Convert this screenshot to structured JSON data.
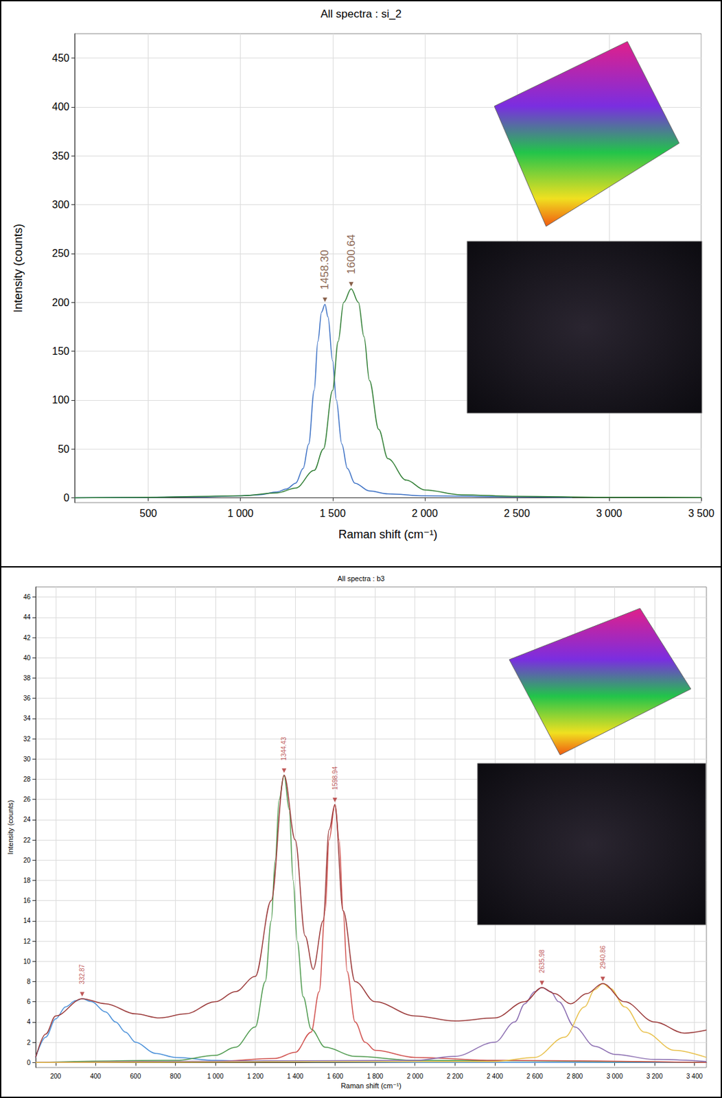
{
  "chart_data": [
    {
      "type": "line",
      "title": "All spectra : si_2",
      "x_label": "Raman shift (cm⁻¹)",
      "y_label": "Intensity (counts)",
      "xlim": [
        100,
        3500
      ],
      "xticks": [
        500,
        {
          "value": 1000,
          "label": "1 000"
        },
        {
          "value": 1500,
          "label": "1 500"
        },
        {
          "value": 2000,
          "label": "2 000"
        },
        {
          "value": 2500,
          "label": "2 500"
        },
        {
          "value": 3000,
          "label": "3 000"
        },
        {
          "value": 3500,
          "label": "3 500"
        }
      ],
      "ylim": [
        -5,
        475
      ],
      "yticks": [
        0,
        50,
        100,
        150,
        200,
        250,
        300,
        350,
        400,
        450
      ],
      "grid": true,
      "series": [
        {
          "color": "#3a6fc4",
          "x": [
            100,
            500,
            800,
            1000,
            1100,
            1200,
            1250,
            1300,
            1340,
            1370,
            1400,
            1420,
            1440,
            1458.3,
            1475,
            1500,
            1520,
            1550,
            1580,
            1620,
            1700,
            1800,
            2000,
            2500,
            2800
          ],
          "values": [
            0,
            0.5,
            1,
            2,
            3,
            6,
            9,
            15,
            30,
            55,
            110,
            160,
            190,
            198,
            185,
            140,
            100,
            55,
            30,
            15,
            7,
            4,
            2,
            1,
            0.5
          ]
        },
        {
          "color": "#2e7d32",
          "x": [
            100,
            500,
            1000,
            1200,
            1300,
            1400,
            1450,
            1500,
            1530,
            1560,
            1600.64,
            1640,
            1670,
            1700,
            1750,
            1800,
            1900,
            2000,
            2200,
            2500,
            3000,
            3500
          ],
          "values": [
            0,
            0.5,
            2,
            5,
            10,
            28,
            50,
            110,
            160,
            200,
            214,
            200,
            165,
            120,
            70,
            40,
            18,
            8,
            3,
            1.5,
            0.5,
            0.3
          ]
        }
      ],
      "annotations": [
        {
          "x": 1458.3,
          "y": 198,
          "text": "1458.30"
        },
        {
          "x": 1600.64,
          "y": 214,
          "text": "1600.64"
        }
      ]
    },
    {
      "type": "line",
      "title": "All spectra : b3",
      "x_label": "Raman shift (cm⁻¹)",
      "y_label": "Intensity (counts)",
      "xlim": [
        100,
        3460
      ],
      "xticks": [
        200,
        400,
        600,
        800,
        {
          "value": 1000,
          "label": "1 000"
        },
        {
          "value": 1200,
          "label": "1 200"
        },
        {
          "value": 1400,
          "label": "1 400"
        },
        {
          "value": 1600,
          "label": "1 600"
        },
        {
          "value": 1800,
          "label": "1 800"
        },
        {
          "value": 2000,
          "label": "2 000"
        },
        {
          "value": 2200,
          "label": "2 200"
        },
        {
          "value": 2400,
          "label": "2 400"
        },
        {
          "value": 2600,
          "label": "2 600"
        },
        {
          "value": 2800,
          "label": "2 800"
        },
        {
          "value": 3000,
          "label": "3 000"
        },
        {
          "value": 3200,
          "label": "3 200"
        },
        {
          "value": 3400,
          "label": "3 400"
        }
      ],
      "ylim": [
        -0.5,
        47
      ],
      "yticks": [
        0,
        2,
        4,
        6,
        8,
        10,
        12,
        14,
        16,
        18,
        20,
        22,
        24,
        26,
        28,
        30,
        32,
        34,
        36,
        38,
        40,
        42,
        44,
        46
      ],
      "grid": true,
      "series": [
        {
          "color": "#4a90d9",
          "x": [
            100,
            150,
            200,
            250,
            300,
            332.87,
            380,
            450,
            500,
            550,
            600,
            700,
            800,
            1000,
            1200,
            1500,
            2000,
            3460
          ],
          "values": [
            0.5,
            2.5,
            4.3,
            5.5,
            6.1,
            6.3,
            6.0,
            5.0,
            4.0,
            3.0,
            2.0,
            0.9,
            0.5,
            0.2,
            0.1,
            0.05,
            0,
            0
          ]
        },
        {
          "color": "#4e9a4e",
          "x": [
            100,
            800,
            1000,
            1100,
            1200,
            1250,
            1280,
            1300,
            1320,
            1344.43,
            1370,
            1390,
            1410,
            1440,
            1480,
            1550,
            1700,
            2000,
            3460
          ],
          "values": [
            0,
            0.2,
            0.7,
            1.5,
            3.5,
            8,
            14,
            20,
            26,
            28.4,
            25,
            18,
            12,
            6.5,
            3.3,
            1.5,
            0.6,
            0.2,
            0
          ]
        },
        {
          "color": "#d0504d",
          "x": [
            100,
            1000,
            1300,
            1400,
            1480,
            1520,
            1550,
            1570,
            1598.94,
            1620,
            1640,
            1660,
            1700,
            1750,
            1800,
            2000,
            2400,
            3460
          ],
          "values": [
            0,
            0.1,
            0.4,
            1,
            3,
            7,
            15,
            22,
            25.5,
            22,
            15,
            9,
            4,
            2,
            1.2,
            0.5,
            0.2,
            0
          ]
        },
        {
          "color": "#8a6cb0",
          "x": [
            100,
            2000,
            2200,
            2400,
            2500,
            2550,
            2600,
            2635.98,
            2680,
            2720,
            2800,
            2900,
            3000,
            3200,
            3460
          ],
          "values": [
            0,
            0.2,
            0.6,
            2,
            4,
            5.8,
            7,
            7.4,
            7,
            6,
            3.5,
            1.6,
            0.8,
            0.3,
            0.1
          ]
        },
        {
          "color": "#e8c04a",
          "x": [
            100,
            2400,
            2600,
            2750,
            2850,
            2900,
            2940.86,
            2980,
            3050,
            3150,
            3300,
            3460
          ],
          "values": [
            0,
            0.1,
            0.5,
            2.5,
            5.5,
            7.2,
            7.8,
            7.3,
            5.5,
            3,
            1.2,
            0.5
          ]
        },
        {
          "color": "#9b3a3a",
          "x": [
            100,
            150,
            200,
            332.87,
            450,
            600,
            720,
            850,
            1000,
            1100,
            1200,
            1280,
            1344.43,
            1400,
            1450,
            1490,
            1540,
            1570,
            1598.94,
            1640,
            1700,
            1800,
            2000,
            2200,
            2400,
            2550,
            2635.98,
            2700,
            2780,
            2860,
            2940.86,
            3050,
            3200,
            3350,
            3460
          ],
          "values": [
            0.5,
            2.8,
            4.6,
            6.3,
            5.8,
            4.8,
            4.4,
            4.8,
            6,
            7,
            8.5,
            16,
            28.4,
            22,
            12.5,
            9.2,
            14,
            23,
            25.5,
            15,
            8,
            6,
            4.6,
            4.1,
            4.4,
            6,
            7.4,
            6.8,
            5.8,
            6.8,
            7.8,
            6,
            4,
            2.9,
            3.2
          ]
        }
      ],
      "annotations": [
        {
          "x": 332.87,
          "y": 6.3,
          "text": "332.87"
        },
        {
          "x": 1344.43,
          "y": 28.4,
          "text": "1344.43"
        },
        {
          "x": 1598.94,
          "y": 25.5,
          "text": "1598.94"
        },
        {
          "x": 2635.98,
          "y": 7.4,
          "text": "2635.98"
        },
        {
          "x": 2940.86,
          "y": 7.8,
          "text": "2940.86"
        }
      ]
    }
  ]
}
